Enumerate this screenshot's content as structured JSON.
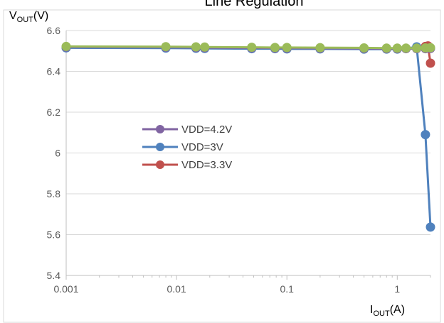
{
  "chart_data": {
    "type": "line",
    "title": "Line Regulation",
    "xlabel": {
      "main": "I",
      "sub": "OUT",
      "unit": "(A)"
    },
    "ylabel": {
      "main": "V",
      "sub": "OUT",
      "unit": "(V)"
    },
    "xscale": "log",
    "xlim": [
      0.001,
      2
    ],
    "ylim": [
      5.4,
      6.6
    ],
    "x_ticks": [
      0.001,
      0.01,
      0.1,
      1
    ],
    "x_tick_labels": [
      "0.001",
      "0.01",
      "0.1",
      "1"
    ],
    "y_ticks": [
      5.4,
      5.6,
      5.8,
      6,
      6.2,
      6.4,
      6.6
    ],
    "y_tick_labels": [
      "5.4",
      "5.6",
      "5.8",
      "6",
      "6.2",
      "6.4",
      "6.6"
    ],
    "grid": "horizontal",
    "legend_placement": "center-left",
    "series": [
      {
        "name": "VDD=3.3V",
        "color": "#C0504D",
        "x": [
          0.008,
          0.015,
          0.018,
          0.048,
          0.078,
          0.1,
          0.2,
          0.5,
          0.8,
          1.0,
          1.2,
          1.5,
          1.8,
          1.9,
          2.0
        ],
        "y": [
          6.518,
          6.517,
          6.516,
          6.515,
          6.514,
          6.514,
          6.513,
          6.512,
          6.512,
          6.512,
          6.512,
          6.512,
          6.522,
          6.525,
          6.44
        ]
      },
      {
        "name": "VDD=3V",
        "color": "#4F81BD",
        "x": [
          0.001,
          0.008,
          0.015,
          0.018,
          0.048,
          0.078,
          0.1,
          0.2,
          0.5,
          0.8,
          1.0,
          1.2,
          1.5,
          1.8,
          2.0
        ],
        "y": [
          6.515,
          6.514,
          6.513,
          6.512,
          6.511,
          6.511,
          6.51,
          6.51,
          6.509,
          6.509,
          6.509,
          6.512,
          6.52,
          6.09,
          5.637
        ]
      },
      {
        "name": "VDD=4.2V",
        "color": "#8064A2",
        "x": [
          0.001,
          0.008,
          0.015,
          0.018,
          0.048,
          0.078,
          0.1,
          0.2,
          0.5,
          0.8,
          1.0,
          1.2,
          1.5,
          1.8,
          2.0
        ],
        "y": [
          6.519,
          6.518,
          6.517,
          6.516,
          6.515,
          6.514,
          6.514,
          6.513,
          6.512,
          6.511,
          6.511,
          6.511,
          6.511,
          6.511,
          6.512
        ]
      },
      {
        "name": "",
        "color": "#9BBB59",
        "x": [
          0.001,
          0.008,
          0.015,
          0.018,
          0.048,
          0.078,
          0.1,
          0.2,
          0.5,
          0.8,
          1.0,
          1.2,
          1.5,
          1.8,
          2.0
        ],
        "y": [
          6.522,
          6.521,
          6.52,
          6.519,
          6.518,
          6.517,
          6.517,
          6.516,
          6.515,
          6.514,
          6.514,
          6.514,
          6.514,
          6.515,
          6.516
        ]
      }
    ],
    "legend_entries": [
      {
        "label": "VDD=4.2V",
        "color": "#8064A2"
      },
      {
        "label": "VDD=3V",
        "color": "#4F81BD"
      },
      {
        "label": "VDD=3.3V",
        "color": "#C0504D"
      }
    ]
  }
}
